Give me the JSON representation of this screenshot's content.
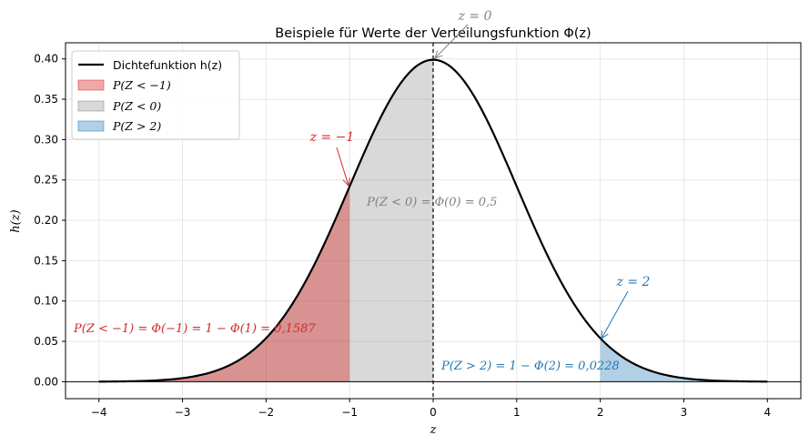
{
  "chart_data": {
    "type": "area",
    "title": "Beispiele für Werte der Verteilungsfunktion Φ(z)",
    "xlabel": "z",
    "ylabel": "h(z)",
    "xlim": [
      -4.4,
      4.4
    ],
    "ylim": [
      -0.021,
      0.42
    ],
    "x_ticks": [
      -4,
      -3,
      -2,
      -1,
      0,
      1,
      2,
      3,
      4
    ],
    "x_tick_labels": [
      "−4",
      "−3",
      "−2",
      "−1",
      "0",
      "1",
      "2",
      "3",
      "4"
    ],
    "y_ticks": [
      0.0,
      0.05,
      0.1,
      0.15,
      0.2,
      0.25,
      0.3,
      0.35,
      0.4
    ],
    "y_tick_labels": [
      "0.00",
      "0.05",
      "0.10",
      "0.15",
      "0.20",
      "0.25",
      "0.30",
      "0.35",
      "0.40"
    ],
    "grid": true,
    "legend_position": "top-left",
    "curve": {
      "label": "Dichtefunktion h(z)",
      "function": "standard normal density",
      "x_range": [
        -4,
        4
      ],
      "peak": 0.3989,
      "color": "#000000"
    },
    "shaded_regions": [
      {
        "label": "P(Z < −1)",
        "x_from": -4,
        "x_to": -1,
        "color": "#d62728",
        "fill_opacity": 0.4
      },
      {
        "label": "P(Z < 0)",
        "x_from": -4,
        "x_to": 0,
        "color": "#808080",
        "fill_opacity": 0.3
      },
      {
        "label": "P(Z > 2)",
        "x_from": 2,
        "x_to": 4,
        "color": "#1f77b4",
        "fill_opacity": 0.35
      }
    ],
    "vertical_line": {
      "x": 0,
      "style": "dashed"
    },
    "annotations": [
      {
        "text": "z = 0",
        "points_to_x": 0,
        "points_to_y": 0.3989,
        "color": "#808080"
      },
      {
        "text": "z = −1",
        "points_to_x": -1,
        "points_to_y": 0.242,
        "color": "#d62728"
      },
      {
        "text": "z = 2",
        "points_to_x": 2,
        "points_to_y": 0.054,
        "color": "#1f77b4"
      },
      {
        "text": "P(Z < 0) = Φ(0) = 0,5",
        "color": "#808080"
      },
      {
        "text": "P(Z < −1) = Φ(−1) = 1 − Φ(1) = 0,1587",
        "color": "#d62728"
      },
      {
        "text": "P(Z > 2) = 1 − Φ(2) = 0,0228",
        "color": "#1f77b4"
      }
    ]
  }
}
